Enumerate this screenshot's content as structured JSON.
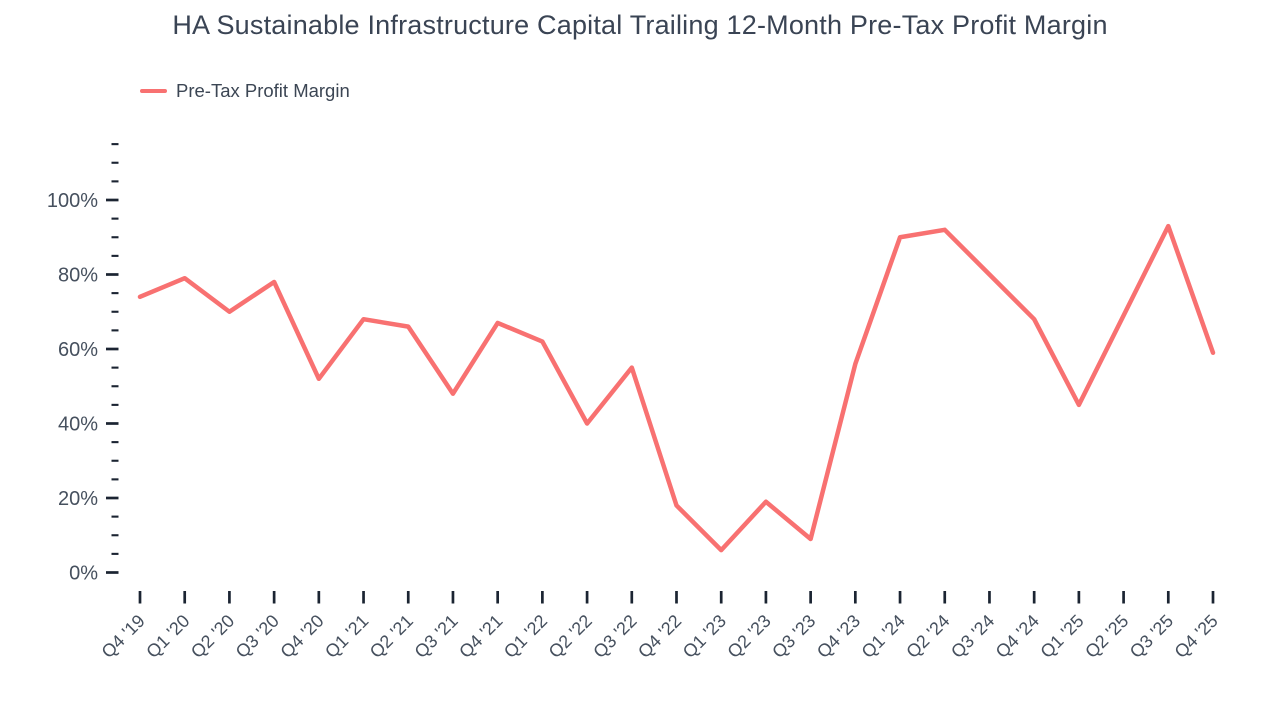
{
  "title": "HA Sustainable Infrastructure Capital Trailing 12-Month Pre-Tax Profit Margin",
  "legend": {
    "label": "Pre-Tax Profit Margin",
    "color": "#f87171"
  },
  "colors": {
    "line": "#f87171",
    "tick": "#1b2432",
    "label": "#46505e",
    "title": "#3a4454",
    "background": "#ffffff"
  },
  "chart_data": {
    "type": "line",
    "title": "HA Sustainable Infrastructure Capital Trailing 12-Month Pre-Tax Profit Margin",
    "xlabel": "",
    "ylabel": "",
    "x": [
      "Q4 '19",
      "Q1 '20",
      "Q2 '20",
      "Q3 '20",
      "Q4 '20",
      "Q1 '21",
      "Q2 '21",
      "Q3 '21",
      "Q4 '21",
      "Q1 '22",
      "Q2 '22",
      "Q3 '22",
      "Q4 '22",
      "Q1 '23",
      "Q2 '23",
      "Q3 '23",
      "Q4 '23",
      "Q1 '24",
      "Q2 '24",
      "Q3 '24",
      "Q4 '24",
      "Q1 '25",
      "Q2 '25",
      "Q3 '25",
      "Q4 '25"
    ],
    "series": [
      {
        "name": "Pre-Tax Profit Margin",
        "values": [
          74,
          79,
          70,
          78,
          52,
          68,
          66,
          48,
          67,
          62,
          40,
          55,
          18,
          6,
          19,
          9,
          56,
          90,
          92,
          80,
          68,
          45,
          69,
          93,
          59
        ]
      }
    ],
    "y_unit": "%",
    "y_major_ticks": [
      0,
      20,
      40,
      60,
      80,
      100
    ],
    "y_minor_step": 5,
    "ylim": [
      0,
      115
    ],
    "grid": false,
    "legend_position": "top-left"
  }
}
